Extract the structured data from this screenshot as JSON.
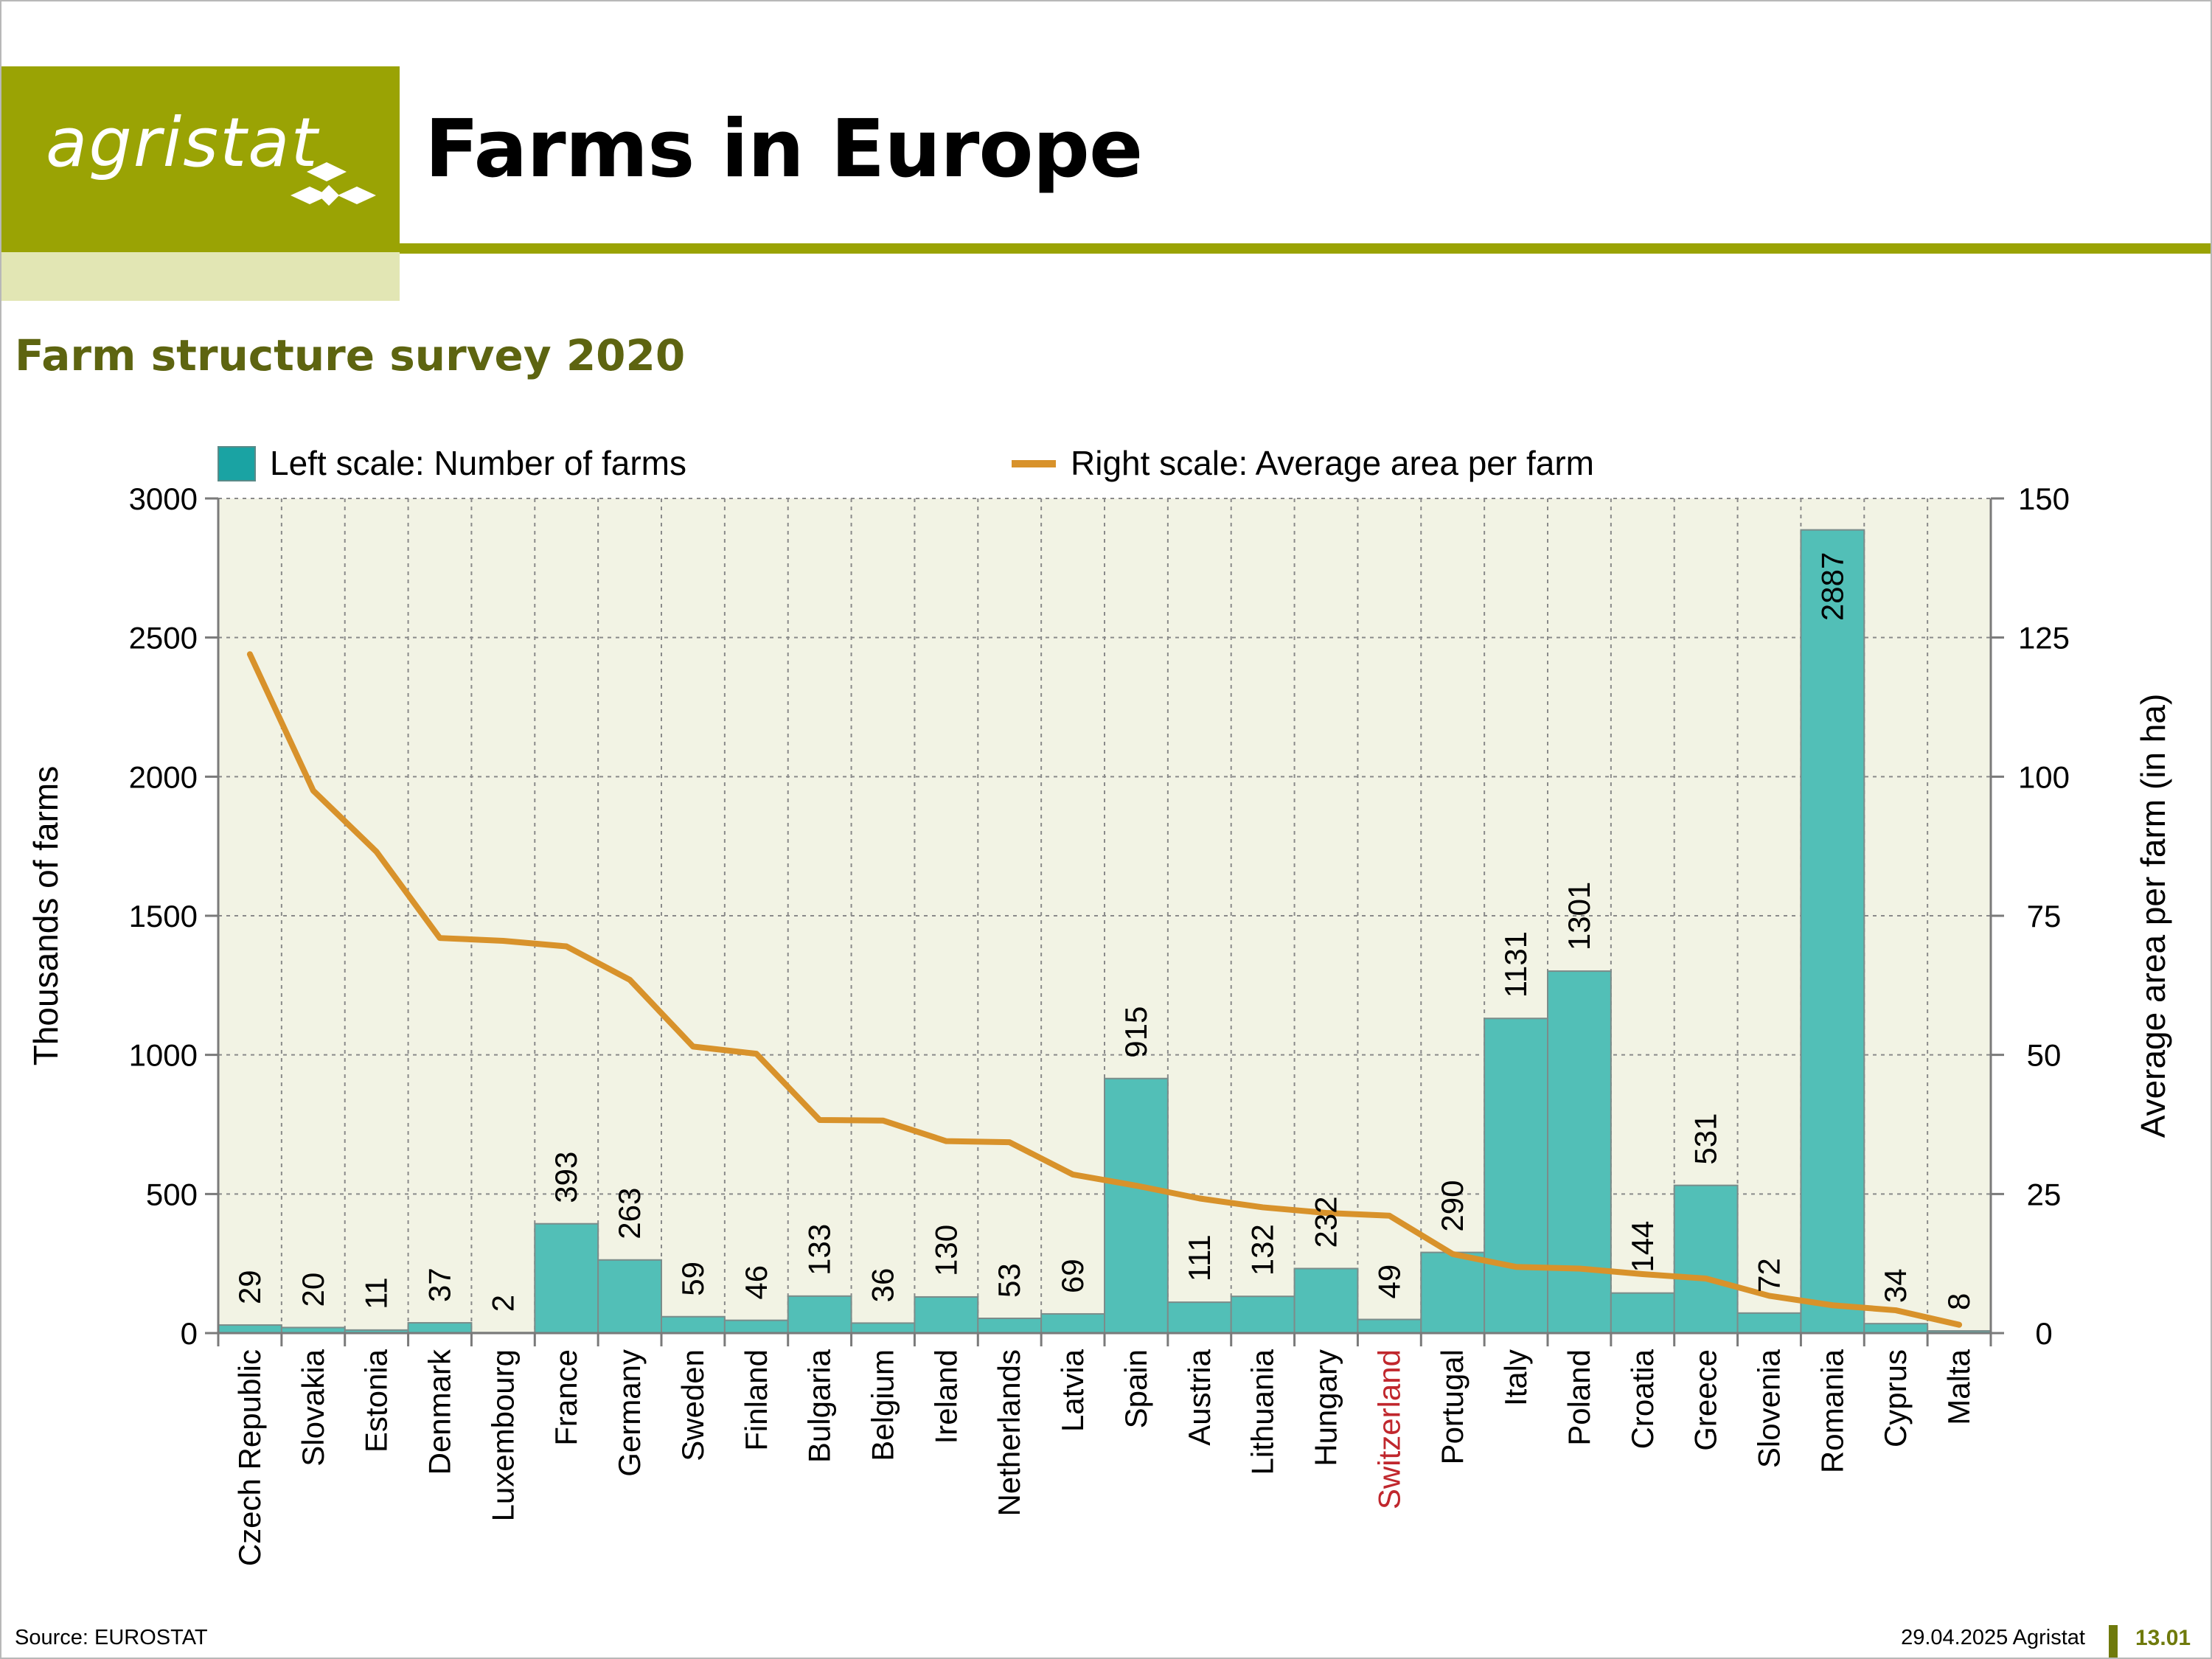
{
  "header": {
    "logo_text": "agristat",
    "title": "Farms in Europe",
    "colors": {
      "brand": "#9aa304",
      "brand_light": "#e2e6b4",
      "subtitle": "#5d6410"
    }
  },
  "subtitle": "Farm structure survey 2020",
  "legend": {
    "bars_label": "Left scale: Number of farms",
    "line_label": "Right scale: Average area per farm"
  },
  "chart_data": {
    "type": "bar",
    "title": "Farm structure survey 2020",
    "ylabel": "Thousands of farms",
    "y2label": "Average area per farm (in ha)",
    "ylim": [
      0,
      3000
    ],
    "y2lim": [
      0,
      150
    ],
    "yticks": [
      0,
      500,
      1000,
      1500,
      2000,
      2500,
      3000
    ],
    "y2ticks": [
      0,
      25,
      50,
      75,
      100,
      125,
      150
    ],
    "grid": true,
    "legend_position": "top",
    "highlight_category": "Switzerland",
    "highlight_color": "#c0272d",
    "categories": [
      "Czech Republic",
      "Slovakia",
      "Estonia",
      "Denmark",
      "Luxembourg",
      "France",
      "Germany",
      "Sweden",
      "Finland",
      "Bulgaria",
      "Belgium",
      "Ireland",
      "Netherlands",
      "Latvia",
      "Spain",
      "Austria",
      "Lithuania",
      "Hungary",
      "Switzerland",
      "Portugal",
      "Italy",
      "Poland",
      "Croatia",
      "Greece",
      "Slovenia",
      "Romania",
      "Cyprus",
      "Malta"
    ],
    "series": [
      {
        "name": "Left scale: Number of farms",
        "type": "bar",
        "axis": "left",
        "color": "#52bfb7",
        "values": [
          29,
          20,
          11,
          37,
          2,
          393,
          263,
          59,
          46,
          133,
          36,
          130,
          53,
          69,
          915,
          111,
          132,
          232,
          49,
          290,
          1131,
          1301,
          144,
          531,
          72,
          2887,
          34,
          8
        ]
      },
      {
        "name": "Right scale: Average area per farm",
        "type": "line",
        "axis": "right",
        "color": "#d8922b",
        "values": [
          122,
          97.5,
          86.5,
          71,
          70.5,
          69.5,
          63.5,
          51.5,
          50.2,
          38.3,
          38.2,
          34.5,
          34.3,
          28.5,
          26.5,
          24.2,
          22.6,
          21.6,
          21.1,
          14.2,
          11.9,
          11.6,
          10.6,
          9.8,
          6.7,
          5.0,
          4.1,
          1.5
        ]
      }
    ]
  },
  "footer": {
    "source": "Source: EUROSTAT",
    "date_org": "29.04.2025 Agristat",
    "page": "13.01"
  }
}
